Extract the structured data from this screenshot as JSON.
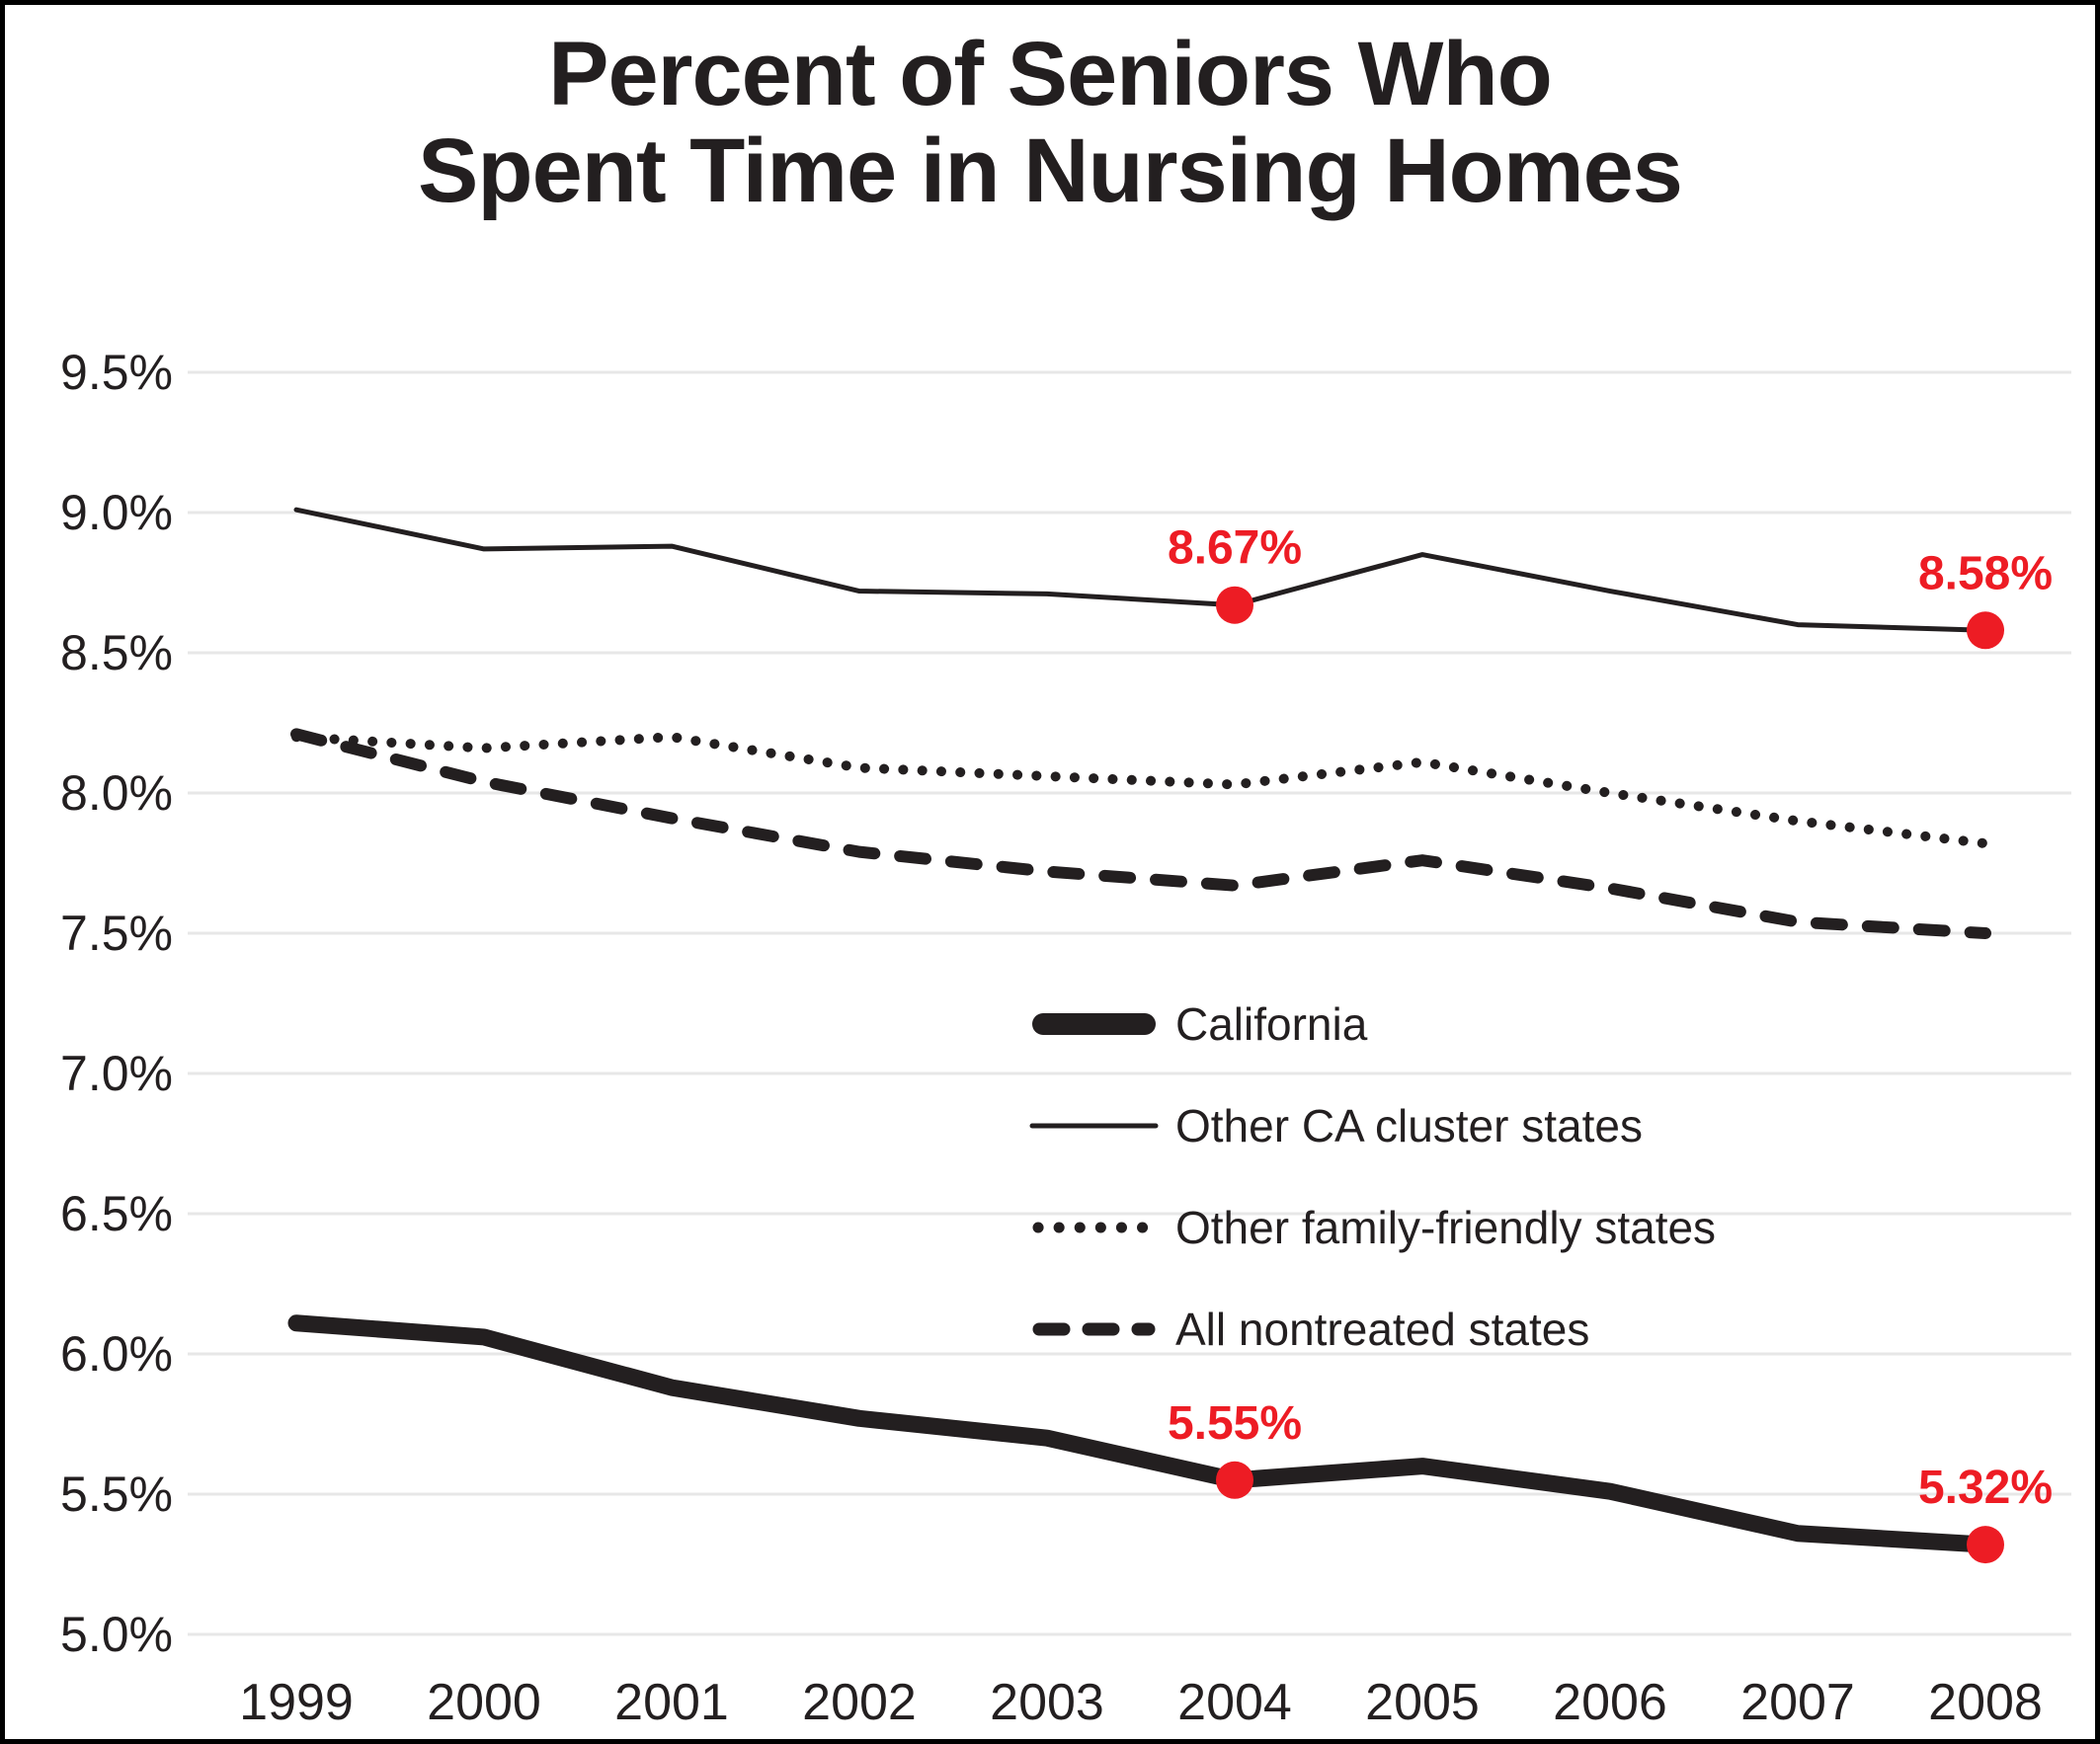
{
  "title": {
    "line1": "Percent of Seniors Who",
    "line2": "Spent Time in Nursing Homes"
  },
  "colors": {
    "line": "#231f20",
    "grid": "#e7e7e7",
    "text": "#231f20",
    "annotation_red": "#ed1c24",
    "background": "#ffffff",
    "border": "#000000"
  },
  "chart_data": {
    "type": "line",
    "x": [
      1999,
      2000,
      2001,
      2002,
      2003,
      2004,
      2005,
      2006,
      2007,
      2008
    ],
    "x_tick_labels": [
      "1999",
      "2000",
      "2001",
      "2002",
      "2003",
      "2004",
      "2005",
      "2006",
      "2007",
      "2008"
    ],
    "y_ticks": [
      {
        "value": 5.0,
        "label": "5.0%"
      },
      {
        "value": 5.5,
        "label": "5.5%"
      },
      {
        "value": 6.0,
        "label": "6.0%"
      },
      {
        "value": 6.5,
        "label": "6.5%"
      },
      {
        "value": 7.0,
        "label": "7.0%"
      },
      {
        "value": 7.5,
        "label": "7.5%"
      },
      {
        "value": 8.0,
        "label": "8.0%"
      },
      {
        "value": 8.5,
        "label": "8.5%"
      },
      {
        "value": 9.0,
        "label": "9.0%"
      },
      {
        "value": 9.5,
        "label": "9.5%"
      }
    ],
    "ylim": [
      5.0,
      9.5
    ],
    "grid": "horizontal",
    "legend_position": "inside-center",
    "series": [
      {
        "name": "California",
        "key": "california",
        "style": "thick-solid",
        "values": [
          6.11,
          6.06,
          5.88,
          5.77,
          5.7,
          5.55,
          5.6,
          5.51,
          5.36,
          5.32
        ]
      },
      {
        "name": "Other CA cluster states",
        "key": "cluster",
        "style": "thin-solid",
        "values": [
          9.01,
          8.87,
          8.88,
          8.72,
          8.71,
          8.67,
          8.85,
          8.72,
          8.6,
          8.58
        ]
      },
      {
        "name": "Other family-friendly states",
        "key": "family",
        "style": "dotted",
        "values": [
          8.2,
          8.16,
          8.2,
          8.09,
          8.06,
          8.03,
          8.11,
          8.0,
          7.9,
          7.82
        ]
      },
      {
        "name": "All nontreated states",
        "key": "nontreated",
        "style": "dashed",
        "values": [
          8.21,
          8.04,
          7.91,
          7.79,
          7.72,
          7.67,
          7.76,
          7.66,
          7.54,
          7.5
        ]
      }
    ],
    "annotations": [
      {
        "series": "cluster",
        "year": 2004,
        "value": 8.67,
        "label": "8.67%"
      },
      {
        "series": "cluster",
        "year": 2008,
        "value": 8.58,
        "label": "8.58%"
      },
      {
        "series": "california",
        "year": 2004,
        "value": 5.55,
        "label": "5.55%"
      },
      {
        "series": "california",
        "year": 2008,
        "value": 5.32,
        "label": "5.32%"
      }
    ]
  }
}
